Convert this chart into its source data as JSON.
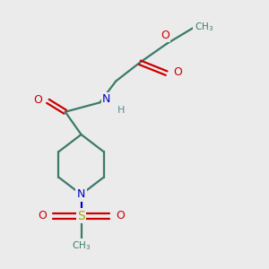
{
  "background_color": "#ebebeb",
  "figsize": [
    3.0,
    3.0
  ],
  "dpi": 100,
  "bond_color": "#3a7a6a",
  "atom_colors": {
    "O": "#cc0000",
    "N": "#0000cc",
    "S": "#aaaa00",
    "C": "#3a7a6a",
    "H": "#5a8a8a"
  },
  "lw": 1.6
}
